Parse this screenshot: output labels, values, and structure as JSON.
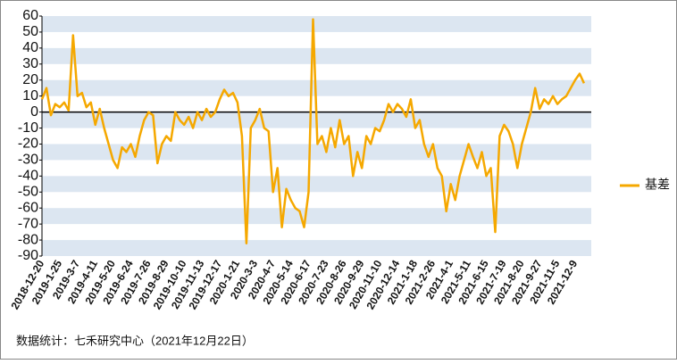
{
  "chart_data": {
    "type": "line",
    "categories": [
      "2018-12-20",
      null,
      null,
      null,
      "2019-1-25",
      null,
      null,
      null,
      "2019-3-7",
      null,
      null,
      null,
      "2019-4-11",
      null,
      null,
      null,
      "2019-5-20",
      null,
      null,
      null,
      "2019-6-24",
      null,
      null,
      null,
      "2019-7-26",
      null,
      null,
      null,
      "2019-8-29",
      null,
      null,
      null,
      "2019-10-10",
      null,
      null,
      null,
      "2019-11-13",
      null,
      null,
      null,
      "2019-12-17",
      null,
      null,
      null,
      "2020-1-21",
      null,
      null,
      null,
      "2020-3-3",
      null,
      null,
      null,
      "2020-4-7",
      null,
      null,
      null,
      "2020-5-14",
      null,
      null,
      null,
      "2020-6-17",
      null,
      null,
      null,
      "2020-7-23",
      null,
      null,
      null,
      "2020-8-26",
      null,
      null,
      null,
      "2020-9-29",
      null,
      null,
      null,
      "2020-11-10",
      null,
      null,
      null,
      "2020-12-14",
      null,
      null,
      null,
      "2021-1-18",
      null,
      null,
      null,
      "2021-2-26",
      null,
      null,
      null,
      "2021-4-1",
      null,
      null,
      null,
      "2021-5-11",
      null,
      null,
      null,
      "2021-6-15",
      null,
      null,
      null,
      "2021-7-19",
      null,
      null,
      null,
      "2021-8-20",
      null,
      null,
      null,
      "2021-9-27",
      null,
      null,
      null,
      "2021-11-5",
      null,
      null,
      null,
      "2021-12-9",
      null,
      null
    ],
    "series": [
      {
        "name": "基差",
        "color": "#f5a800",
        "values": [
          8,
          15,
          -2,
          5,
          3,
          6,
          1,
          48,
          10,
          12,
          3,
          6,
          -8,
          2,
          -10,
          -20,
          -30,
          -35,
          -22,
          -25,
          -20,
          -28,
          -15,
          -5,
          0,
          -2,
          -32,
          -20,
          -15,
          -18,
          0,
          -5,
          -8,
          -3,
          -10,
          0,
          -5,
          2,
          -3,
          0,
          8,
          14,
          10,
          12,
          6,
          -15,
          -82,
          -10,
          -5,
          2,
          -10,
          -12,
          -50,
          -35,
          -72,
          -48,
          -55,
          -60,
          -62,
          -72,
          -50,
          58,
          -20,
          -15,
          -25,
          -10,
          -22,
          -5,
          -20,
          -15,
          -40,
          -25,
          -35,
          -15,
          -20,
          -10,
          -12,
          -5,
          5,
          0,
          5,
          2,
          -3,
          8,
          -10,
          -5,
          -20,
          -28,
          -20,
          -35,
          -40,
          -62,
          -45,
          -55,
          -40,
          -30,
          -20,
          -28,
          -35,
          -25,
          -40,
          -35,
          -75,
          -15,
          -8,
          -12,
          -20,
          -35,
          -20,
          -10,
          0,
          15,
          2,
          8,
          5,
          10,
          5,
          8,
          10,
          15,
          20,
          24,
          18
        ]
      }
    ],
    "ylim": [
      -90,
      60
    ],
    "yticks": [
      -90,
      -80,
      -70,
      -60,
      -50,
      -40,
      -30,
      -20,
      -10,
      0,
      10,
      20,
      30,
      40,
      50,
      60
    ],
    "zero_line": true,
    "legend": "right",
    "footnote": "数据统计：七禾研究中心（2021年12月22日）"
  }
}
